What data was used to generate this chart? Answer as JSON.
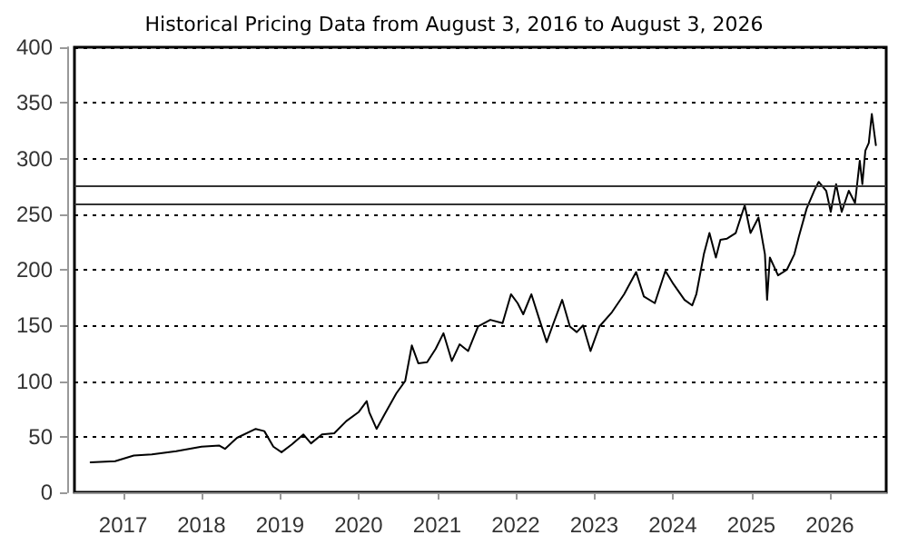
{
  "chart_data": {
    "type": "line",
    "title": "Historical Pricing Data from August 3, 2016 to August 3, 2026",
    "x": [
      "2016-08-03",
      "2016-11-25",
      "2017-02-20",
      "2017-05-15",
      "2017-09-05",
      "2018-01-01",
      "2018-03-25",
      "2018-04-20",
      "2018-06-15",
      "2018-09-10",
      "2018-10-20",
      "2018-12-01",
      "2019-01-08",
      "2019-02-25",
      "2019-04-20",
      "2019-05-25",
      "2019-07-15",
      "2019-09-10",
      "2019-11-05",
      "2020-01-01",
      "2020-02-08",
      "2020-02-20",
      "2020-03-25",
      "2020-05-01",
      "2020-06-25",
      "2020-08-05",
      "2020-09-05",
      "2020-10-05",
      "2020-11-15",
      "2020-12-25",
      "2021-01-30",
      "2021-03-10",
      "2021-04-15",
      "2021-05-25",
      "2021-07-10",
      "2021-09-05",
      "2021-11-01",
      "2021-12-10",
      "2022-01-10",
      "2022-02-05",
      "2022-03-15",
      "2022-04-20",
      "2022-05-25",
      "2022-06-20",
      "2022-08-05",
      "2022-09-10",
      "2022-10-12",
      "2022-11-10",
      "2022-12-15",
      "2023-01-25",
      "2023-03-25",
      "2023-05-20",
      "2023-07-15",
      "2023-08-20",
      "2023-10-10",
      "2023-11-28",
      "2024-01-05",
      "2024-02-25",
      "2024-04-01",
      "2024-04-20",
      "2024-05-25",
      "2024-06-20",
      "2024-07-20",
      "2024-08-10",
      "2024-09-10",
      "2024-10-20",
      "2024-12-01",
      "2024-12-28",
      "2025-02-03",
      "2025-03-05",
      "2025-03-15",
      "2025-03-28",
      "2025-05-05",
      "2025-06-15",
      "2025-07-20",
      "2025-08-10",
      "2025-09-15",
      "2025-10-20",
      "2025-11-10",
      "2025-12-15",
      "2026-01-05",
      "2026-01-30",
      "2026-02-25",
      "2026-03-30",
      "2026-04-28",
      "2026-05-20",
      "2026-06-01",
      "2026-06-15",
      "2026-07-01",
      "2026-07-15",
      "2026-08-03"
    ],
    "series": [
      {
        "color": "#000000",
        "values": [
          27,
          28,
          33,
          34,
          37,
          41,
          42,
          39,
          49,
          57,
          55,
          41,
          36,
          43,
          52,
          44,
          52,
          53,
          64,
          72,
          82,
          72,
          57,
          70,
          89,
          100,
          132,
          116,
          117,
          129,
          143,
          118,
          133,
          127,
          149,
          155,
          152,
          178,
          170,
          160,
          178,
          156,
          135,
          149,
          173,
          149,
          144,
          150,
          127,
          149,
          162,
          178,
          198,
          176,
          170,
          199,
          187,
          173,
          168,
          178,
          214,
          233,
          211,
          227,
          228,
          233,
          258,
          233,
          247,
          214,
          173,
          211,
          195,
          200,
          214,
          230,
          255,
          271,
          279,
          271,
          252,
          277,
          252,
          271,
          260,
          298,
          277,
          307,
          314,
          340,
          312
        ]
      }
    ],
    "xlim": [
      "2016-05-20",
      "2026-09-20"
    ],
    "xticks": [
      "2017",
      "2018",
      "2019",
      "2020",
      "2021",
      "2022",
      "2023",
      "2024",
      "2025",
      "2026"
    ],
    "ylim": [
      0,
      400
    ],
    "yticks": [
      0,
      50,
      100,
      150,
      200,
      250,
      300,
      350,
      400
    ],
    "ref_lines": [
      {
        "axis": "y",
        "value": 276,
        "color": "#333333"
      },
      {
        "axis": "y",
        "value": 260,
        "color": "#333333"
      }
    ],
    "grid": "y",
    "marker": "none",
    "line_style": "solid"
  }
}
